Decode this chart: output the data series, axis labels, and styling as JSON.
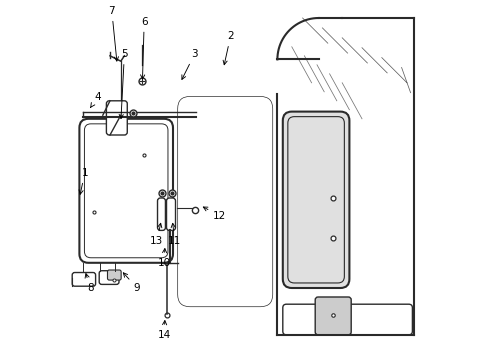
{
  "bg_color": "#ffffff",
  "line_color": "#2a2a2a",
  "label_positions": {
    "1": [
      0.055,
      0.48,
      0.04,
      0.55
    ],
    "2": [
      0.46,
      0.1,
      0.44,
      0.19
    ],
    "3": [
      0.36,
      0.15,
      0.32,
      0.23
    ],
    "4": [
      0.09,
      0.27,
      0.07,
      0.3
    ],
    "5": [
      0.165,
      0.15,
      0.155,
      0.34
    ],
    "6": [
      0.22,
      0.06,
      0.215,
      0.23
    ],
    "7": [
      0.13,
      0.03,
      0.145,
      0.18
    ],
    "8": [
      0.07,
      0.8,
      0.055,
      0.75
    ],
    "9": [
      0.2,
      0.8,
      0.155,
      0.75
    ],
    "10": [
      0.275,
      0.73,
      0.278,
      0.68
    ],
    "11": [
      0.305,
      0.67,
      0.298,
      0.61
    ],
    "12": [
      0.43,
      0.6,
      0.375,
      0.57
    ],
    "13": [
      0.255,
      0.67,
      0.268,
      0.61
    ],
    "14": [
      0.275,
      0.93,
      0.278,
      0.88
    ]
  }
}
